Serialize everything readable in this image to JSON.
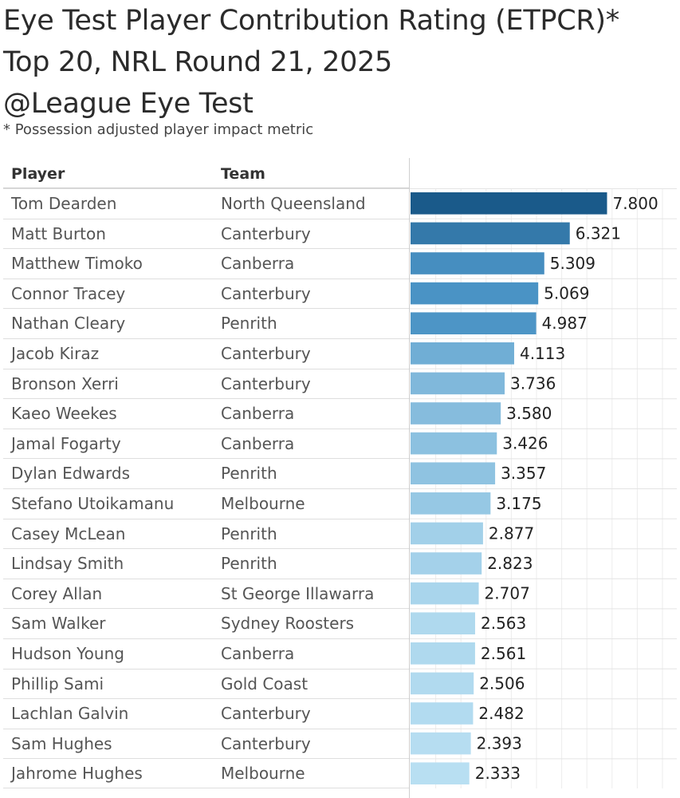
{
  "title_lines": [
    "Eye Test Player Contribution Rating (ETPCR)*",
    "Top 20, NRL Round 21, 2025",
    "@League Eye Test"
  ],
  "subtitle": "* Possession adjusted player impact metric",
  "columns": {
    "player": "Player",
    "team": "Team"
  },
  "colors": {
    "max": "#1a5a8a",
    "mid": "#4a93c5",
    "min": "#b8dff2"
  },
  "chart_data": {
    "type": "bar",
    "orientation": "horizontal",
    "categories": [
      "Tom Dearden",
      "Matt Burton",
      "Matthew Timoko",
      "Connor Tracey",
      "Nathan Cleary",
      "Jacob Kiraz",
      "Bronson Xerri",
      "Kaeo Weekes",
      "Jamal Fogarty",
      "Dylan Edwards",
      "Stefano Utoikamanu",
      "Casey McLean",
      "Lindsay Smith",
      "Corey Allan",
      "Sam Walker",
      "Hudson Young",
      "Phillip Sami",
      "Lachlan Galvin",
      "Sam Hughes",
      "Jahrome Hughes"
    ],
    "teams": [
      "North Queensland",
      "Canterbury",
      "Canberra",
      "Canterbury",
      "Penrith",
      "Canterbury",
      "Canterbury",
      "Canberra",
      "Canberra",
      "Penrith",
      "Melbourne",
      "Penrith",
      "Penrith",
      "St George Illawarra",
      "Sydney Roosters",
      "Canberra",
      "Gold Coast",
      "Canterbury",
      "Canterbury",
      "Melbourne"
    ],
    "values": [
      7.8,
      6.321,
      5.309,
      5.069,
      4.987,
      4.113,
      3.736,
      3.58,
      3.426,
      3.357,
      3.175,
      2.877,
      2.823,
      2.707,
      2.563,
      2.561,
      2.506,
      2.482,
      2.393,
      2.333
    ],
    "labels": [
      "7.800",
      "6.321",
      "5.309",
      "5.069",
      "4.987",
      "4.113",
      "3.736",
      "3.580",
      "3.426",
      "3.357",
      "3.175",
      "2.877",
      "2.823",
      "2.707",
      "2.563",
      "2.561",
      "2.506",
      "2.482",
      "2.393",
      "2.333"
    ],
    "xlim": [
      0,
      10
    ],
    "grid": true
  }
}
